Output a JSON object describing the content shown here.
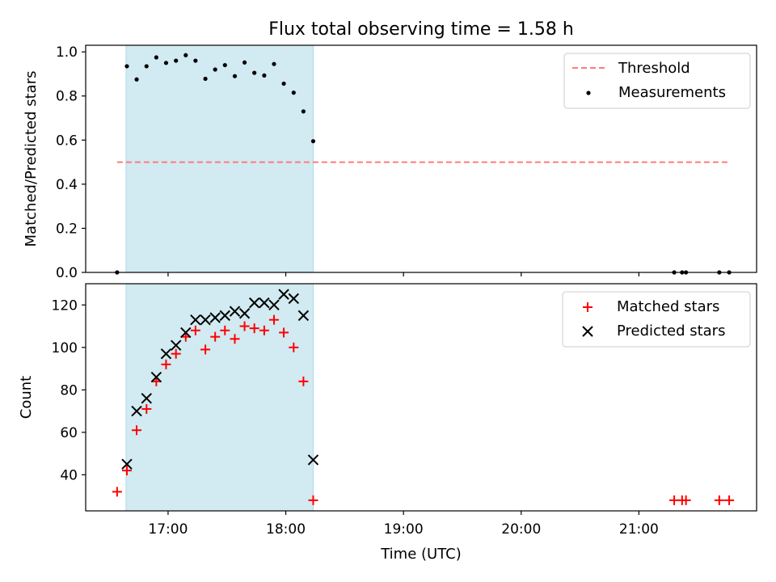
{
  "title": "Flux total observing time = 1.58 h",
  "xlabel": "Time (UTC)",
  "colors": {
    "threshold": "#ff7b7b",
    "measurements": "#000000",
    "matched": "#ff0000",
    "predicted": "#000000",
    "shade": "#add8e6"
  },
  "chart_data": [
    {
      "type": "scatter",
      "panel": "top",
      "ylabel": "Matched/Predicted stars",
      "x_unit": "hours UTC",
      "xlim": [
        16.3,
        22.0
      ],
      "ylim": [
        0.0,
        1.03
      ],
      "yticks": [
        "0.0",
        "0.2",
        "0.4",
        "0.6",
        "0.8",
        "1.0"
      ],
      "ytick_values": [
        0.0,
        0.2,
        0.4,
        0.6,
        0.8,
        1.0
      ],
      "legend_position": "top-right",
      "shaded_interval": [
        16.643,
        18.233
      ],
      "threshold": {
        "name": "Threshold",
        "y": 0.5,
        "x_range": [
          16.567,
          21.767
        ]
      },
      "series": [
        {
          "name": "Measurements",
          "marker": "dot",
          "points": [
            [
              16.567,
              0.0
            ],
            [
              16.65,
              0.935
            ],
            [
              16.733,
              0.875
            ],
            [
              16.817,
              0.935
            ],
            [
              16.9,
              0.975
            ],
            [
              16.983,
              0.95
            ],
            [
              17.067,
              0.96
            ],
            [
              17.15,
              0.985
            ],
            [
              17.233,
              0.96
            ],
            [
              17.317,
              0.878
            ],
            [
              17.4,
              0.92
            ],
            [
              17.483,
              0.94
            ],
            [
              17.567,
              0.89
            ],
            [
              17.65,
              0.952
            ],
            [
              17.733,
              0.905
            ],
            [
              17.817,
              0.893
            ],
            [
              17.9,
              0.945
            ],
            [
              17.983,
              0.856
            ],
            [
              18.067,
              0.815
            ],
            [
              18.15,
              0.73
            ],
            [
              18.233,
              0.595
            ],
            [
              21.3,
              0.0
            ],
            [
              21.367,
              0.0
            ],
            [
              21.4,
              0.0
            ],
            [
              21.683,
              0.0
            ],
            [
              21.767,
              0.0
            ]
          ]
        }
      ]
    },
    {
      "type": "scatter",
      "panel": "bottom",
      "ylabel": "Count",
      "x_unit": "hours UTC",
      "xlim": [
        16.3,
        22.0
      ],
      "ylim": [
        23,
        130
      ],
      "yticks": [
        "40",
        "60",
        "80",
        "100",
        "120"
      ],
      "ytick_values": [
        40,
        60,
        80,
        100,
        120
      ],
      "xticks": [
        "17:00",
        "18:00",
        "19:00",
        "20:00",
        "21:00"
      ],
      "xtick_values": [
        17,
        18,
        19,
        20,
        21
      ],
      "legend_position": "top-right",
      "shaded_interval": [
        16.643,
        18.233
      ],
      "series": [
        {
          "name": "Matched stars",
          "marker": "plus",
          "points": [
            [
              16.567,
              32
            ],
            [
              16.65,
              42
            ],
            [
              16.733,
              61
            ],
            [
              16.817,
              71
            ],
            [
              16.9,
              84
            ],
            [
              16.983,
              92
            ],
            [
              17.067,
              97
            ],
            [
              17.15,
              105
            ],
            [
              17.233,
              108
            ],
            [
              17.317,
              99
            ],
            [
              17.4,
              105
            ],
            [
              17.483,
              108
            ],
            [
              17.567,
              104
            ],
            [
              17.65,
              110
            ],
            [
              17.733,
              109
            ],
            [
              17.817,
              108
            ],
            [
              17.9,
              113
            ],
            [
              17.983,
              107
            ],
            [
              18.067,
              100
            ],
            [
              18.15,
              84
            ],
            [
              18.233,
              28
            ],
            [
              21.3,
              28
            ],
            [
              21.367,
              28
            ],
            [
              21.4,
              28
            ],
            [
              21.683,
              28
            ],
            [
              21.767,
              28
            ]
          ]
        },
        {
          "name": "Predicted stars",
          "marker": "x",
          "points": [
            [
              16.65,
              45
            ],
            [
              16.733,
              70
            ],
            [
              16.817,
              76
            ],
            [
              16.9,
              86
            ],
            [
              16.983,
              97
            ],
            [
              17.067,
              101
            ],
            [
              17.15,
              107
            ],
            [
              17.233,
              113
            ],
            [
              17.317,
              113
            ],
            [
              17.4,
              114
            ],
            [
              17.483,
              115
            ],
            [
              17.567,
              117
            ],
            [
              17.65,
              116
            ],
            [
              17.733,
              121
            ],
            [
              17.817,
              121
            ],
            [
              17.9,
              120
            ],
            [
              17.983,
              125
            ],
            [
              18.067,
              123
            ],
            [
              18.15,
              115
            ],
            [
              18.233,
              47
            ]
          ]
        }
      ]
    }
  ]
}
